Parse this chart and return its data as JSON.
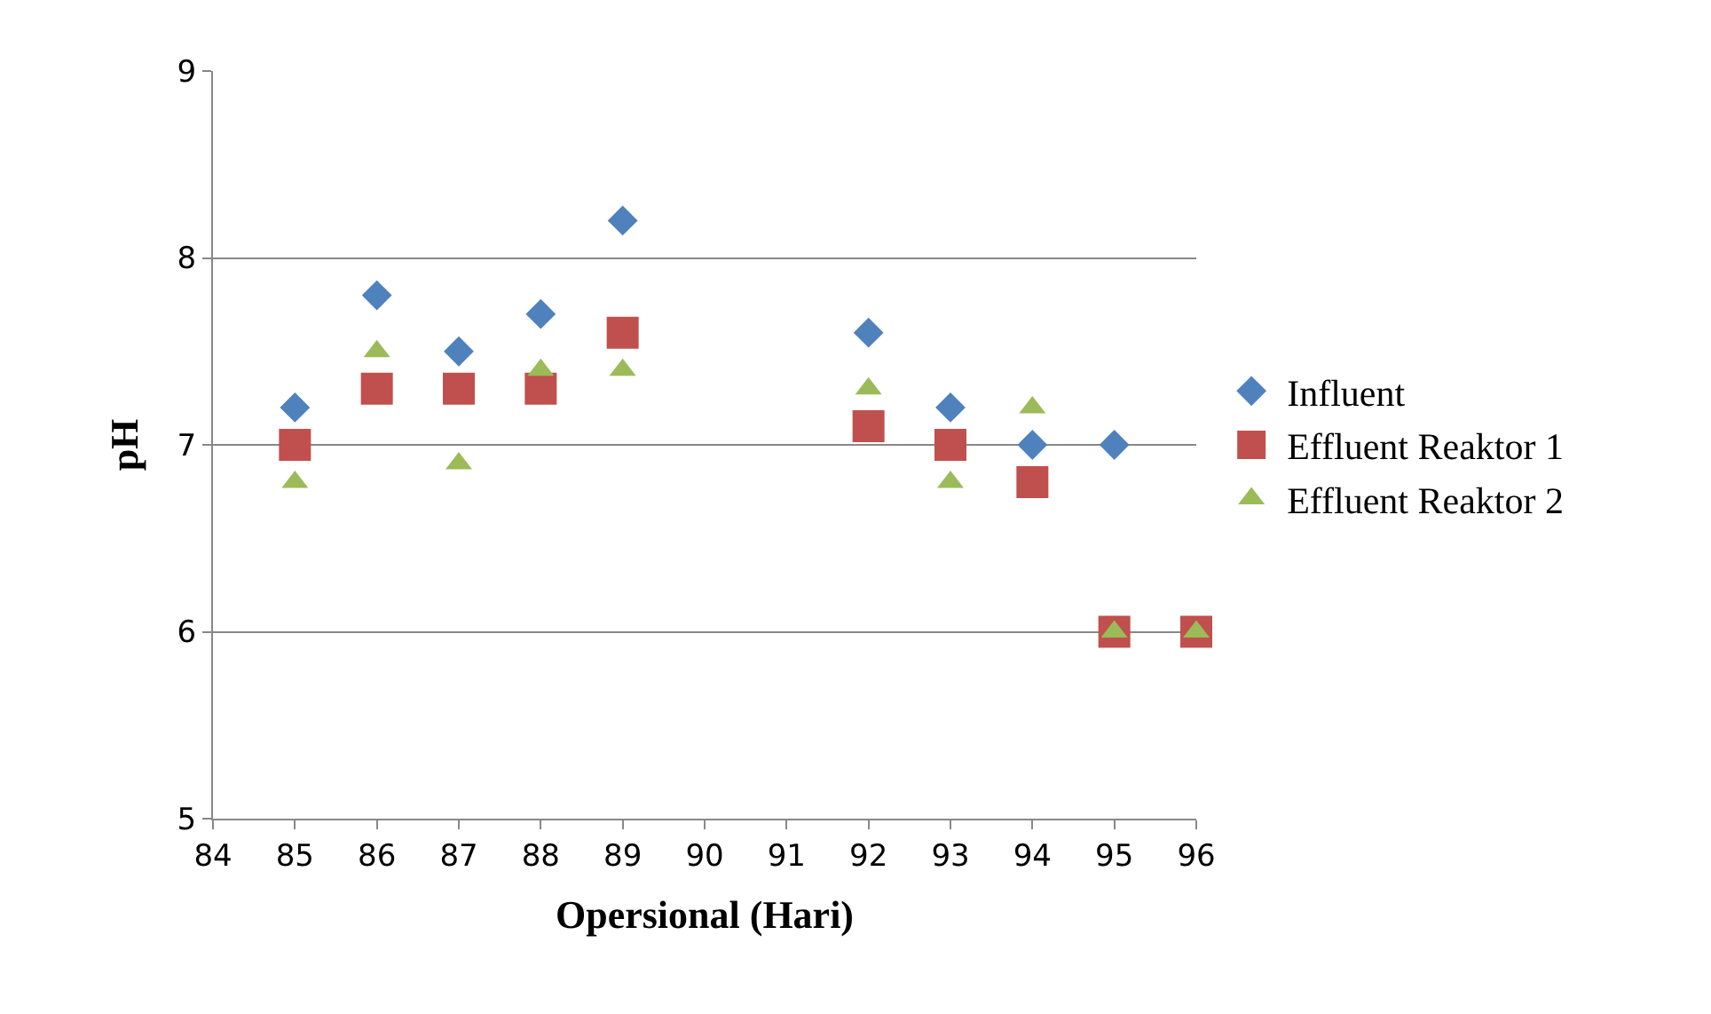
{
  "chart_data": {
    "type": "scatter",
    "xlabel": "Opersional (Hari)",
    "ylabel": "pH",
    "x": [
      85,
      86,
      87,
      88,
      89,
      92,
      93,
      94,
      95,
      96
    ],
    "series": [
      {
        "name": "Influent",
        "color": "#4f81bd",
        "marker": "diamond",
        "values": [
          7.2,
          7.8,
          7.5,
          7.7,
          8.2,
          7.6,
          7.2,
          7.0,
          7.0,
          null
        ]
      },
      {
        "name": "Effluent Reaktor 1",
        "color": "#c0504d",
        "marker": "square",
        "values": [
          7.0,
          7.3,
          7.3,
          7.3,
          7.6,
          7.1,
          7.0,
          6.8,
          6.0,
          6.0
        ]
      },
      {
        "name": "Effluent Reaktor 2",
        "color": "#9bbb59",
        "marker": "triangle",
        "values": [
          6.8,
          7.5,
          6.9,
          7.4,
          7.4,
          7.3,
          6.8,
          7.2,
          6.0,
          6.0
        ]
      }
    ],
    "xlim": [
      84,
      96
    ],
    "xticks": [
      84,
      85,
      86,
      87,
      88,
      89,
      90,
      91,
      92,
      93,
      94,
      95,
      96
    ],
    "ylim": [
      5,
      9
    ],
    "yticks": [
      5,
      6,
      7,
      8,
      9
    ],
    "grid": "y",
    "legend": "right"
  }
}
